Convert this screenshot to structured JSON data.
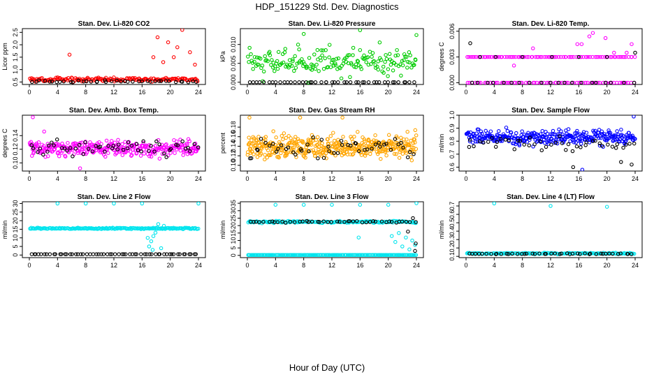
{
  "figure": {
    "title": "HDP_151229  Std. Dev. Diagnostics",
    "xlabel": "Hour of Day (UTC)"
  },
  "colors": {
    "black": "#000000",
    "red": "#ff0000",
    "green": "#00cc00",
    "magenta": "#ff00ff",
    "orange": "#ffa500",
    "blue": "#0000ff",
    "cyan": "#00e5ee"
  },
  "chart_data": [
    {
      "type": "scatter",
      "title": "Stan. Dev. Li-820 CO2",
      "ylabel": "Licor ppm",
      "xlim": [
        0,
        24
      ],
      "xticks": [
        "0",
        "4",
        "8",
        "12",
        "16",
        "20",
        "24"
      ],
      "ylim": [
        0.4,
        2.65
      ],
      "yticks": [
        "0.5",
        "1.0",
        "1.5",
        "2.0",
        "2.5"
      ],
      "ytick_values": [
        0.5,
        1.0,
        1.5,
        2.0,
        2.5
      ],
      "series": [
        {
          "name": "all",
          "color": "red",
          "base": 0.6,
          "spread": 0.08,
          "count": 170,
          "outliers": [
            [
              5.7,
              1.6
            ],
            [
              18.2,
              2.3
            ],
            [
              19.7,
              2.1
            ],
            [
              21.7,
              2.6
            ],
            [
              21.0,
              1.9
            ],
            [
              22.8,
              1.7
            ],
            [
              20.5,
              1.5
            ],
            [
              17.6,
              1.5
            ],
            [
              19.0,
              1.3
            ],
            [
              23.5,
              1.2
            ]
          ]
        },
        {
          "name": "black",
          "color": "black",
          "base": 0.52,
          "spread": 0.04,
          "count": 40,
          "outliers": []
        }
      ]
    },
    {
      "type": "scatter",
      "title": "Stan. Dev. Li-820 Pressure",
      "ylabel": "kPa",
      "xlim": [
        0,
        24
      ],
      "xticks": [
        "0",
        "4",
        "8",
        "12",
        "16",
        "20",
        "24"
      ],
      "ylim": [
        -0.0006,
        0.0142
      ],
      "yticks": [
        "0.000",
        "0.005",
        "0.010"
      ],
      "ytick_values": [
        0.0,
        0.005,
        0.01
      ],
      "series": [
        {
          "name": "all",
          "color": "green",
          "base": 0.0055,
          "spread": 0.0035,
          "count": 190,
          "outliers": [
            [
              8.0,
              0.0128
            ],
            [
              16.0,
              0.0138
            ],
            [
              24.0,
              0.0125
            ]
          ]
        },
        {
          "name": "black",
          "color": "black",
          "base": 0.0,
          "spread": 0.0,
          "count": 45,
          "outliers": []
        }
      ]
    },
    {
      "type": "scatter",
      "title": "Stan. Dev. Li-820 Temp.",
      "ylabel": "degrees C",
      "xlim": [
        0,
        24
      ],
      "xticks": [
        "0",
        "4",
        "8",
        "12",
        "16",
        "20",
        "24"
      ],
      "ylim": [
        -0.0002,
        0.0063
      ],
      "yticks": [
        "0.000",
        "0.003",
        "0.006"
      ],
      "ytick_values": [
        0.0,
        0.003,
        0.006
      ],
      "series": [
        {
          "name": "all",
          "color": "magenta",
          "base": 0.003,
          "spread": 0.0,
          "count": 90,
          "outliers": [
            [
              15.8,
              0.0045
            ],
            [
              16.4,
              0.0045
            ],
            [
              18.0,
              0.0058
            ],
            [
              17.5,
              0.0054
            ],
            [
              19.8,
              0.0052
            ],
            [
              23.5,
              0.0045
            ],
            [
              21.0,
              0.0035
            ],
            [
              9.5,
              0.004
            ],
            [
              6.8,
              0.002
            ],
            [
              22.8,
              0.0035
            ]
          ]
        },
        {
          "name": "all-zero",
          "color": "magenta",
          "base": 0.0,
          "spread": 0.0,
          "count": 70,
          "outliers": []
        },
        {
          "name": "black",
          "color": "black",
          "base": 0.0,
          "spread": 0.0,
          "count": 20,
          "outliers": [
            [
              0.6,
              0.0046
            ],
            [
              2.0,
              0.003
            ],
            [
              4.2,
              0.003
            ],
            [
              8.0,
              0.003
            ],
            [
              12.2,
              0.003
            ],
            [
              16.0,
              0.003
            ],
            [
              20.0,
              0.003
            ],
            [
              24.0,
              0.0035
            ]
          ]
        }
      ]
    },
    {
      "type": "scatter",
      "title": "Stan. Dev. Amb. Box Temp.",
      "ylabel": "degrees C",
      "xlim": [
        0,
        24
      ],
      "xticks": [
        "0",
        "4",
        "8",
        "12",
        "16",
        "20",
        "24"
      ],
      "ylim": [
        0.088,
        0.17
      ],
      "yticks": [
        "0.10",
        "0.12",
        "0.14"
      ],
      "ytick_values": [
        0.1,
        0.12,
        0.14
      ],
      "series": [
        {
          "name": "all",
          "color": "magenta",
          "base": 0.121,
          "spread": 0.011,
          "count": 320,
          "outliers": [
            [
              0.5,
              0.167
            ],
            [
              7.2,
              0.092
            ],
            [
              2.1,
              0.146
            ]
          ]
        },
        {
          "name": "black",
          "color": "black",
          "base": 0.121,
          "spread": 0.011,
          "count": 55,
          "outliers": []
        }
      ]
    },
    {
      "type": "scatter",
      "title": "Stan. Dev. Gas Stream RH",
      "ylabel": "percent",
      "xlim": [
        0,
        24
      ],
      "xticks": [
        "0",
        "4",
        "8",
        "12",
        "16",
        "20",
        "24"
      ],
      "ylim": [
        0.088,
        0.205
      ],
      "yticks": [
        "0.10",
        "0.12",
        "0.14",
        "0.16",
        "0.18"
      ],
      "ytick_values": [
        0.1,
        0.12,
        0.14,
        0.16,
        0.18
      ],
      "series": [
        {
          "name": "all",
          "color": "orange",
          "base": 0.14,
          "spread": 0.025,
          "count": 420,
          "outliers": [
            [
              7.5,
              0.2
            ],
            [
              13.5,
              0.2
            ],
            [
              0.3,
              0.2
            ]
          ]
        },
        {
          "name": "black",
          "color": "black",
          "base": 0.135,
          "spread": 0.02,
          "count": 50,
          "outliers": []
        }
      ]
    },
    {
      "type": "scatter",
      "title": "Stan. Dev. Sample Flow",
      "ylabel": "ml/min",
      "xlim": [
        0,
        24
      ],
      "xticks": [
        "0",
        "4",
        "8",
        "12",
        "16",
        "20",
        "24"
      ],
      "ylim": [
        0.57,
        1.0
      ],
      "yticks": [
        "0.6",
        "0.7",
        "0.8",
        "0.9",
        "1.0"
      ],
      "ytick_values": [
        0.6,
        0.7,
        0.8,
        0.9,
        1.0
      ],
      "series": [
        {
          "name": "all",
          "color": "blue",
          "base": 0.83,
          "spread": 0.055,
          "count": 320,
          "outliers": [
            [
              23.8,
              0.99
            ],
            [
              16.5,
              0.58
            ]
          ]
        },
        {
          "name": "black",
          "color": "black",
          "base": 0.78,
          "spread": 0.05,
          "count": 45,
          "outliers": [
            [
              22.0,
              0.64
            ],
            [
              23.5,
              0.62
            ],
            [
              15.2,
              0.6
            ]
          ]
        }
      ]
    },
    {
      "type": "scatter",
      "title": "Stan. Dev. Line 2 Flow",
      "ylabel": "ml/min",
      "xlim": [
        0,
        24
      ],
      "xticks": [
        "0",
        "4",
        "8",
        "12",
        "16",
        "20",
        "24"
      ],
      "ylim": [
        -1.5,
        31
      ],
      "yticks": [
        "0",
        "5",
        "10",
        "15",
        "20",
        "25",
        "30"
      ],
      "ytick_values": [
        0,
        5,
        10,
        15,
        20,
        25,
        30
      ],
      "series": [
        {
          "name": "all",
          "color": "cyan",
          "base": 15.5,
          "spread": 0.4,
          "count": 200,
          "outliers": [
            [
              4.0,
              30
            ],
            [
              8.0,
              30
            ],
            [
              12.0,
              30
            ],
            [
              16.0,
              30
            ],
            [
              24.0,
              30
            ],
            [
              17.0,
              5
            ],
            [
              17.3,
              8
            ],
            [
              17.6,
              11
            ],
            [
              17.9,
              13
            ],
            [
              18.3,
              18
            ],
            [
              18.7,
              4
            ],
            [
              19.1,
              17
            ],
            [
              16.8,
              10
            ],
            [
              17.5,
              3
            ]
          ]
        },
        {
          "name": "black",
          "color": "black",
          "base": 0.5,
          "spread": 0.0,
          "count": 60,
          "outliers": []
        }
      ]
    },
    {
      "type": "scatter",
      "title": "Stan. Dev. Line 3 Flow",
      "ylabel": "ml/min",
      "xlim": [
        0,
        24
      ],
      "xticks": [
        "0",
        "4",
        "8",
        "12",
        "16",
        "20",
        "24"
      ],
      "ylim": [
        -1.5,
        36
      ],
      "yticks": [
        "0",
        "5",
        "10",
        "15",
        "20",
        "25",
        "30",
        "35"
      ],
      "ytick_values": [
        0,
        5,
        10,
        15,
        20,
        25,
        30,
        35
      ],
      "series": [
        {
          "name": "all",
          "color": "cyan",
          "base": 22.5,
          "spread": 0.8,
          "count": 160,
          "outliers": [
            [
              4.0,
              34
            ],
            [
              8.0,
              34
            ],
            [
              12.0,
              34
            ],
            [
              16.0,
              34
            ],
            [
              20.0,
              34
            ],
            [
              24.0,
              35
            ],
            [
              15.8,
              12
            ],
            [
              20.5,
              13
            ],
            [
              21.0,
              9
            ],
            [
              21.5,
              15
            ],
            [
              22.0,
              6
            ],
            [
              22.5,
              12
            ],
            [
              23.0,
              4
            ],
            [
              23.4,
              10
            ],
            [
              23.8,
              7
            ]
          ]
        },
        {
          "name": "zero",
          "color": "cyan",
          "base": 0.3,
          "spread": 0.0,
          "count": 180,
          "outliers": []
        },
        {
          "name": "black",
          "color": "black",
          "base": 22.5,
          "spread": 0.6,
          "count": 45,
          "outliers": [
            [
              23.5,
              25
            ],
            [
              23.8,
              3
            ],
            [
              23.9,
              8
            ],
            [
              22.8,
              16
            ]
          ]
        }
      ]
    },
    {
      "type": "scatter",
      "title": "Stan. Dev. Line 4 (LT) Flow",
      "ylabel": "ml/min",
      "xlim": [
        0,
        24
      ],
      "xticks": [
        "0",
        "4",
        "8",
        "12",
        "16",
        "20",
        "24"
      ],
      "ylim": [
        0.085,
        0.75
      ],
      "yticks": [
        "0.1",
        "0.2",
        "0.3",
        "0.4",
        "0.5",
        "0.6",
        "0.7"
      ],
      "ytick_values": [
        0.1,
        0.2,
        0.3,
        0.4,
        0.5,
        0.6,
        0.7
      ],
      "series": [
        {
          "name": "all",
          "color": "cyan",
          "base": 0.135,
          "spread": 0.008,
          "count": 160,
          "outliers": [
            [
              4.0,
              0.73
            ],
            [
              12.0,
              0.7
            ],
            [
              20.0,
              0.69
            ]
          ]
        },
        {
          "name": "black",
          "color": "black",
          "base": 0.13,
          "spread": 0.006,
          "count": 45,
          "outliers": []
        }
      ]
    }
  ]
}
